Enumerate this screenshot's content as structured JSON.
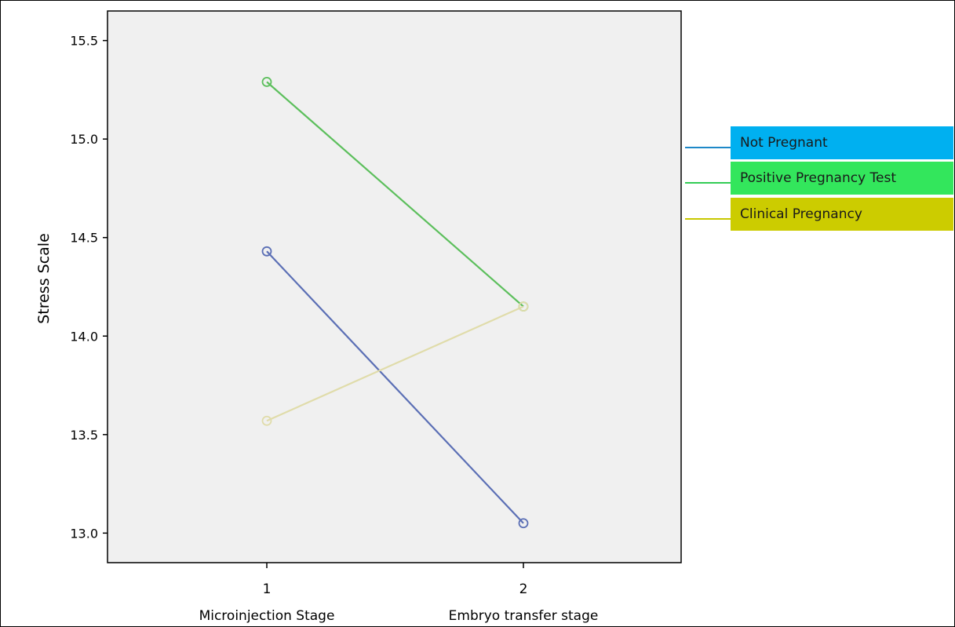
{
  "chart_data": {
    "type": "line",
    "ylabel": "Stress Scale",
    "xlabel": "",
    "ylim": [
      12.85,
      15.65
    ],
    "yticks": [
      "13.0",
      "13.5",
      "14.0",
      "14.5",
      "15.0",
      "15.5"
    ],
    "x": [
      "1",
      "2"
    ],
    "x_sublabels": [
      "Microinjection Stage",
      "Embryo transfer stage"
    ],
    "series": [
      {
        "name": "Not Pregnant",
        "values": [
          14.43,
          13.05
        ],
        "color": "#5b6fb5",
        "legend_color": "#00b0f0",
        "legend_line": "#1e88c8"
      },
      {
        "name": "Positive Pregnancy Test",
        "values": [
          15.29,
          14.15
        ],
        "color": "#5cbf5c",
        "legend_color": "#33e65c",
        "legend_line": "#33cc55"
      },
      {
        "name": "Clinical Pregnancy",
        "values": [
          13.57,
          14.15
        ],
        "color": "#e0dcaa",
        "legend_color": "#cccc00",
        "legend_line": "#c8c800"
      }
    ],
    "legend_position": "right",
    "grid": false
  }
}
